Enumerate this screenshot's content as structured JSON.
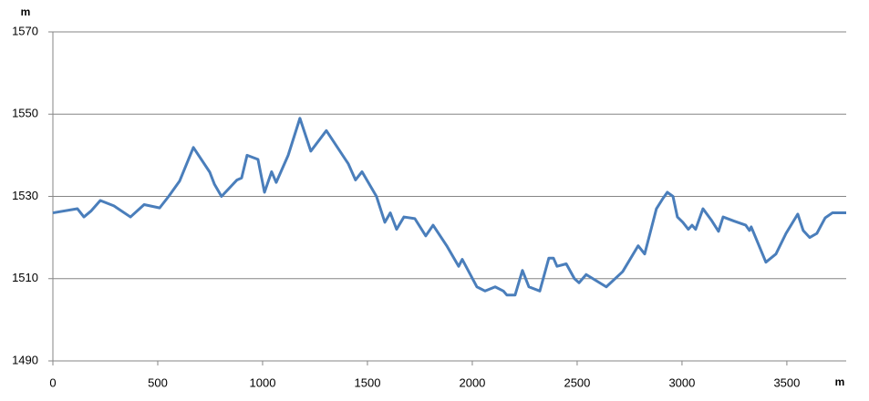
{
  "chart_data": {
    "type": "line",
    "y_label": "m",
    "x_label": "m",
    "x": [
      0,
      117,
      148,
      183,
      226,
      291,
      370,
      435,
      509,
      552,
      604,
      670,
      748,
      770,
      804,
      878,
      900,
      926,
      978,
      1009,
      1043,
      1065,
      1122,
      1178,
      1230,
      1304,
      1409,
      1443,
      1474,
      1543,
      1583,
      1609,
      1639,
      1674,
      1726,
      1778,
      1813,
      1878,
      1935,
      1952,
      2022,
      2061,
      2109,
      2148,
      2165,
      2204,
      2239,
      2270,
      2322,
      2365,
      2387,
      2404,
      2448,
      2487,
      2509,
      2543,
      2639,
      2717,
      2791,
      2822,
      2878,
      2909,
      2930,
      2957,
      2978,
      3004,
      3030,
      3048,
      3065,
      3100,
      3139,
      3174,
      3196,
      3248,
      3304,
      3322,
      3330,
      3400,
      3448,
      3496,
      3552,
      3578,
      3609,
      3643,
      3683,
      3717,
      3783
    ],
    "series": [
      {
        "color": "#4a7ebb",
        "values": [
          1526,
          1527,
          1525,
          1526.5,
          1529,
          1527.7,
          1525,
          1528,
          1527.2,
          1530,
          1533.7,
          1541.9,
          1535.9,
          1533,
          1530,
          1534,
          1534.5,
          1540,
          1539,
          1531,
          1536,
          1533.4,
          1540,
          1549,
          1541,
          1546,
          1537.9,
          1534,
          1536,
          1530,
          1523.7,
          1526,
          1522,
          1525,
          1524.6,
          1520.4,
          1523,
          1518,
          1513,
          1514.7,
          1508,
          1507,
          1508,
          1507,
          1506,
          1506,
          1512,
          1508,
          1507,
          1515,
          1515,
          1513,
          1513.6,
          1510,
          1509,
          1511,
          1508,
          1511.7,
          1518,
          1516,
          1527,
          1529.5,
          1531,
          1530,
          1525,
          1523.7,
          1522,
          1523,
          1522,
          1527,
          1524.3,
          1521.5,
          1525,
          1524,
          1523,
          1521.7,
          1522.6,
          1514,
          1516,
          1521,
          1525.7,
          1521.7,
          1520,
          1521,
          1524.8,
          1526,
          1526
        ]
      }
    ],
    "xlim": [
      0,
      3783
    ],
    "ylim": [
      1490,
      1570
    ],
    "xticks": [
      0,
      500,
      1000,
      1500,
      2000,
      2500,
      3000,
      3500
    ],
    "yticks": [
      1490,
      1510,
      1530,
      1550,
      1570
    ],
    "grid": true
  }
}
